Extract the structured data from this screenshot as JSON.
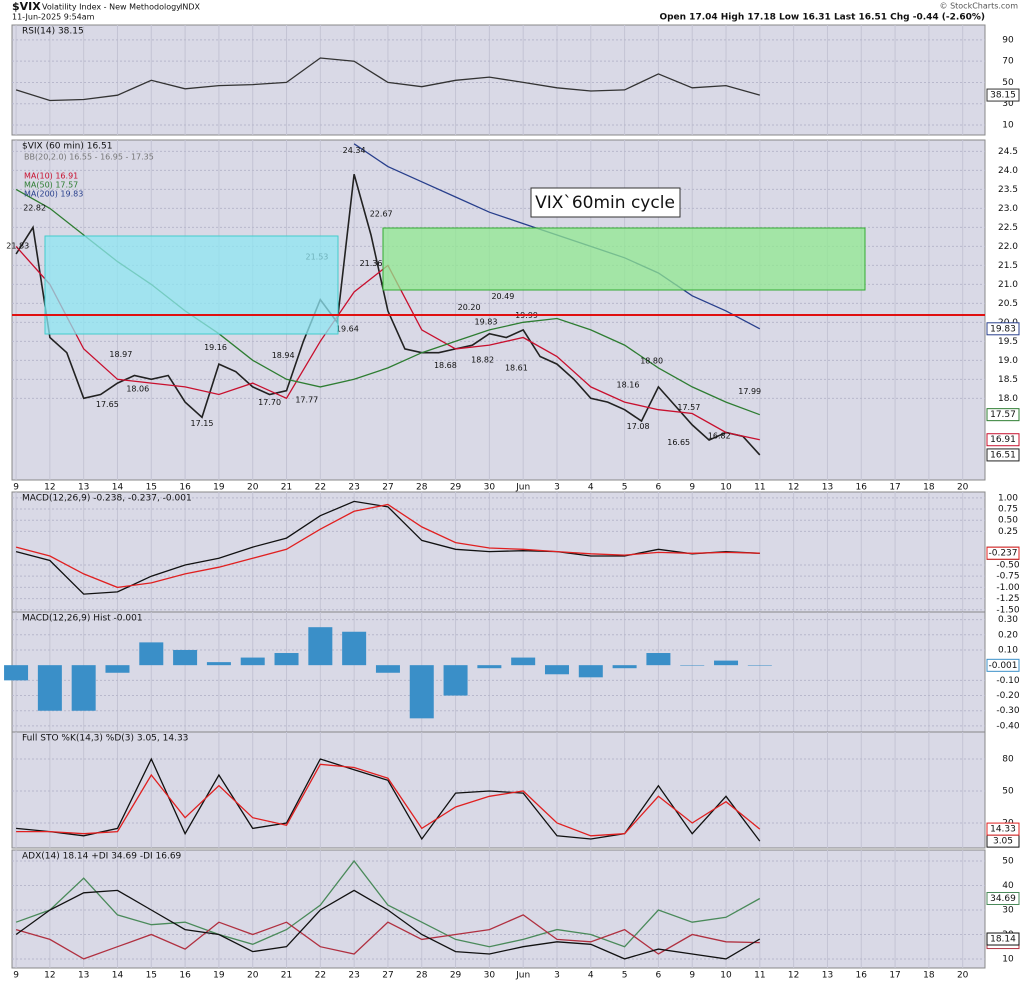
{
  "header": {
    "symbol": "$VIX",
    "name": "Volatility Index - New Methodology",
    "exchange": "INDX",
    "date": "11-Jun-2025 9:54am",
    "quote": "Open 17.04 High 17.18 Low 16.31 Last 16.51 Chg -0.44 (-2.60%)",
    "credit": "© StockCharts.com"
  },
  "chart_data": [
    {
      "type": "line",
      "title": "RSI(14) 38.15",
      "xlim": [
        -0.12,
        28.66
      ],
      "ylim": [
        0.6,
        104
      ],
      "yticks": [
        90,
        70,
        50,
        30,
        10
      ],
      "x": [
        0,
        1,
        2,
        3,
        4,
        5,
        6,
        7,
        8,
        9,
        10,
        11,
        12,
        13,
        14,
        15,
        16,
        17,
        18,
        19,
        20,
        21,
        22
      ],
      "series": [
        {
          "color": "#333333",
          "values": [
            43,
            33,
            34,
            38,
            52,
            44,
            47,
            48,
            50,
            73,
            70,
            50,
            46,
            52,
            55,
            50,
            45,
            42,
            43,
            58,
            45,
            47,
            38.15
          ]
        }
      ]
    },
    {
      "type": "line",
      "title": "$VIX (60 min) 16.51",
      "bb_label": "BB(20,2.0) 16.55 - 16.95 - 17.35",
      "note": "VIX`60min cycle",
      "categories": [
        "9",
        "12",
        "13",
        "14",
        "15",
        "16",
        "19",
        "20",
        "21",
        "22",
        "23",
        "27",
        "28",
        "29",
        "30",
        "Jun",
        "3",
        "4",
        "5",
        "6",
        "9",
        "10",
        "11",
        "12",
        "13",
        "16",
        "17",
        "18",
        "20"
      ],
      "xlim": [
        -0.12,
        28.66
      ],
      "ylim": [
        15.85,
        24.8
      ],
      "yticks": [
        24.5,
        {
          "value": 24,
          "label": "24.0"
        },
        23.5,
        {
          "value": 23,
          "label": "23.0"
        },
        22.5,
        {
          "value": 22,
          "label": "22.0"
        },
        21.5,
        {
          "value": 21,
          "label": "21.0"
        },
        20.5,
        {
          "value": 20,
          "label": "20.0"
        },
        19.5,
        {
          "value": 19,
          "label": "19.0"
        },
        18.5,
        {
          "value": 18,
          "label": "18.0"
        }
      ],
      "x": [
        0,
        1,
        2,
        3,
        4,
        5,
        6,
        7,
        8,
        9,
        10,
        11,
        12,
        13,
        14,
        15,
        16,
        17,
        18,
        19,
        20,
        21,
        22
      ],
      "series": [
        {
          "color": "#222222",
          "x": [
            0,
            0.5,
            1,
            1.5,
            2,
            2.5,
            3,
            3.5,
            4,
            4.5,
            5,
            5.5,
            6,
            6.5,
            7,
            7.5,
            8,
            8.5,
            9,
            9.5,
            10,
            10.5,
            11,
            11.5,
            12,
            12.5,
            13,
            13.5,
            14,
            14.5,
            15,
            15.5,
            16,
            16.5,
            17,
            17.5,
            18,
            18.5,
            19,
            19.5,
            20,
            20.5,
            21,
            21.5,
            22
          ],
          "values": [
            21.8,
            22.5,
            19.6,
            19.2,
            18.0,
            18.1,
            18.4,
            18.6,
            18.5,
            18.6,
            17.9,
            17.5,
            18.9,
            18.7,
            18.3,
            18.1,
            18.2,
            19.5,
            20.6,
            20.0,
            23.9,
            22.3,
            20.3,
            19.3,
            19.2,
            19.2,
            19.3,
            19.4,
            19.7,
            19.6,
            19.8,
            19.1,
            18.9,
            18.5,
            18.0,
            17.9,
            17.7,
            17.4,
            18.3,
            17.8,
            17.3,
            16.9,
            17.1,
            17.0,
            16.51
          ]
        },
        {
          "name": "MA(10) 16.91",
          "color": "#c8102e",
          "values": [
            22.0,
            21.0,
            19.3,
            18.5,
            18.4,
            18.3,
            18.1,
            18.4,
            18.0,
            19.5,
            20.8,
            21.5,
            19.8,
            19.3,
            19.4,
            19.6,
            19.1,
            18.3,
            17.9,
            17.7,
            17.6,
            17.1,
            16.91
          ]
        },
        {
          "name": "MA(50) 17.57",
          "color": "#2e7d32",
          "values": [
            23.5,
            23.0,
            22.3,
            21.6,
            21.0,
            20.3,
            19.7,
            19.0,
            18.5,
            18.3,
            18.5,
            18.8,
            19.2,
            19.5,
            19.8,
            20.0,
            20.1,
            19.8,
            19.4,
            18.8,
            18.3,
            17.9,
            17.57
          ]
        },
        {
          "name": "MA(200) 19.83",
          "color": "#283f8c",
          "values": [
            null,
            null,
            null,
            null,
            null,
            null,
            null,
            null,
            null,
            null,
            24.7,
            24.1,
            23.7,
            23.3,
            22.9,
            22.6,
            22.3,
            22.0,
            21.7,
            21.3,
            20.7,
            20.3,
            19.83
          ]
        }
      ],
      "annotations": [
        {
          "x": 0.55,
          "value": 22.82,
          "label": "22.82"
        },
        {
          "x": 0.05,
          "value": 21.83,
          "label": "21.83"
        },
        {
          "x": 3.1,
          "value": 18.97,
          "label": "18.97"
        },
        {
          "x": 3.6,
          "value": 18.06,
          "label": "18.06"
        },
        {
          "x": 2.7,
          "value": 17.65,
          "label": "17.65"
        },
        {
          "x": 5.9,
          "value": 19.16,
          "label": "19.16"
        },
        {
          "x": 5.5,
          "value": 17.15,
          "label": "17.15"
        },
        {
          "x": 7.9,
          "value": 18.94,
          "label": "18.94"
        },
        {
          "x": 7.5,
          "value": 17.7,
          "label": "17.70"
        },
        {
          "x": 8.6,
          "value": 17.77,
          "label": "17.77"
        },
        {
          "x": 8.9,
          "value": 21.53,
          "label": "21.53"
        },
        {
          "x": 9.8,
          "value": 19.64,
          "label": "19.64"
        },
        {
          "x": 10.0,
          "value": 24.34,
          "label": "24.34"
        },
        {
          "x": 10.8,
          "value": 22.67,
          "label": "22.67"
        },
        {
          "x": 10.5,
          "value": 21.36,
          "label": "21.36"
        },
        {
          "x": 13.4,
          "value": 20.2,
          "label": "20.20"
        },
        {
          "x": 13.9,
          "value": 19.83,
          "label": "19.83"
        },
        {
          "x": 14.4,
          "value": 20.49,
          "label": "20.49"
        },
        {
          "x": 15.1,
          "value": 19.99,
          "label": "19.99"
        },
        {
          "x": 12.7,
          "value": 18.68,
          "label": "18.68"
        },
        {
          "x": 13.8,
          "value": 18.82,
          "label": "18.82"
        },
        {
          "x": 14.8,
          "value": 18.61,
          "label": "18.61"
        },
        {
          "x": 18.1,
          "value": 18.16,
          "label": "18.16"
        },
        {
          "x": 18.8,
          "value": 18.8,
          "label": "18.80"
        },
        {
          "x": 18.4,
          "value": 17.08,
          "label": "17.08"
        },
        {
          "x": 19.9,
          "value": 17.57,
          "label": "17.57"
        },
        {
          "x": 19.6,
          "value": 16.65,
          "label": "16.65"
        },
        {
          "x": 20.8,
          "value": 16.82,
          "label": "16.82"
        },
        {
          "x": 21.7,
          "value": 17.99,
          "label": "17.99"
        }
      ]
    },
    {
      "type": "line",
      "title": "MACD(12,26,9) -0.238, -0.237, -0.001",
      "xlim": [
        -0.12,
        28.66
      ],
      "ylim": [
        -1.55,
        1.13
      ],
      "yticks": [
        {
          "value": 1,
          "label": "1.00"
        },
        0.75,
        {
          "value": 0.5,
          "label": "0.50"
        },
        0.25,
        {
          "value": -0.5,
          "label": "-0.50"
        },
        -0.75,
        {
          "value": -1,
          "label": "-1.00"
        },
        -1.25,
        {
          "value": -1.5,
          "label": "-1.50"
        }
      ],
      "x": [
        0,
        1,
        2,
        3,
        4,
        5,
        6,
        7,
        8,
        9,
        10,
        11,
        12,
        13,
        14,
        15,
        16,
        17,
        18,
        19,
        20,
        21,
        22
      ],
      "series": [
        {
          "color": "#111111",
          "values": [
            -0.2,
            -0.4,
            -1.15,
            -1.1,
            -0.75,
            -0.5,
            -0.35,
            -0.1,
            0.1,
            0.6,
            0.92,
            0.8,
            0.05,
            -0.15,
            -0.2,
            -0.18,
            -0.2,
            -0.3,
            -0.3,
            -0.15,
            -0.25,
            -0.2,
            -0.238
          ]
        },
        {
          "color": "#e02020",
          "values": [
            -0.1,
            -0.3,
            -0.7,
            -1.0,
            -0.9,
            -0.7,
            -0.55,
            -0.35,
            -0.15,
            0.3,
            0.7,
            0.85,
            0.35,
            0.0,
            -0.12,
            -0.15,
            -0.2,
            -0.25,
            -0.28,
            -0.22,
            -0.24,
            -0.22,
            -0.237
          ]
        }
      ]
    },
    {
      "type": "bar",
      "title": "MACD(12,26,9) Hist -0.001",
      "xlim": [
        -0.12,
        28.66
      ],
      "ylim": [
        -0.44,
        0.35
      ],
      "yticks": [
        {
          "value": 0.3,
          "label": "0.30"
        },
        {
          "value": 0.2,
          "label": "0.20"
        },
        {
          "value": 0.1,
          "label": "0.10"
        },
        {
          "value": -0.1,
          "label": "-0.10"
        },
        {
          "value": -0.2,
          "label": "-0.20"
        },
        {
          "value": -0.3,
          "label": "-0.30"
        },
        {
          "value": -0.4,
          "label": "-0.40"
        }
      ],
      "x": [
        0,
        1,
        2,
        3,
        4,
        5,
        6,
        7,
        8,
        9,
        10,
        11,
        12,
        13,
        14,
        15,
        16,
        17,
        18,
        19,
        20,
        21,
        22
      ],
      "series": [
        {
          "color": "#3a8fc8",
          "values": [
            -0.1,
            -0.3,
            -0.3,
            -0.05,
            0.15,
            0.1,
            0.02,
            0.05,
            0.08,
            0.25,
            0.22,
            -0.05,
            -0.35,
            -0.2,
            -0.02,
            0.05,
            -0.06,
            -0.08,
            -0.02,
            0.08,
            0.0,
            0.03,
            -0.001
          ]
        }
      ]
    },
    {
      "type": "line",
      "title": "Full STO %K(14,3) %D(3) 3.05, 14.33",
      "xlim": [
        -0.12,
        28.66
      ],
      "ylim": [
        -3.4,
        105.3
      ],
      "yticks": [
        80,
        50,
        20
      ],
      "x": [
        0,
        1,
        2,
        3,
        4,
        5,
        6,
        7,
        8,
        9,
        10,
        11,
        12,
        13,
        14,
        15,
        16,
        17,
        18,
        19,
        20,
        21,
        22
      ],
      "series": [
        {
          "color": "#111111",
          "values": [
            15,
            12,
            8,
            15,
            80,
            10,
            65,
            15,
            20,
            80,
            70,
            60,
            5,
            48,
            50,
            48,
            8,
            5,
            10,
            55,
            10,
            45,
            3.05
          ]
        },
        {
          "color": "#e02020",
          "values": [
            12,
            12,
            10,
            12,
            65,
            25,
            55,
            25,
            18,
            75,
            72,
            62,
            15,
            35,
            45,
            50,
            20,
            8,
            10,
            45,
            20,
            40,
            14.33
          ]
        }
      ]
    },
    {
      "type": "line",
      "title": "ADX(14) 18.14 +DI 34.69 -DI 16.69",
      "categories": [
        "9",
        "12",
        "13",
        "14",
        "15",
        "16",
        "19",
        "20",
        "21",
        "22",
        "23",
        "27",
        "28",
        "29",
        "30",
        "Jun",
        "3",
        "4",
        "5",
        "6",
        "9",
        "10",
        "11",
        "12",
        "13",
        "16",
        "17",
        "18",
        "20"
      ],
      "xlim": [
        -0.12,
        28.66
      ],
      "ylim": [
        6.3,
        54.5
      ],
      "yticks": [
        50,
        40,
        30,
        20,
        10
      ],
      "x": [
        0,
        1,
        2,
        3,
        4,
        5,
        6,
        7,
        8,
        9,
        10,
        11,
        12,
        13,
        14,
        15,
        16,
        17,
        18,
        19,
        20,
        21,
        22
      ],
      "series": [
        {
          "color": "#4a8a5a",
          "values": [
            25,
            30,
            43,
            28,
            24,
            25,
            20,
            16,
            22,
            32,
            50,
            32,
            25,
            18,
            15,
            18,
            22,
            20,
            15,
            30,
            25,
            27,
            34.69
          ]
        },
        {
          "color": "#b03040",
          "values": [
            22,
            18,
            10,
            15,
            20,
            14,
            25,
            20,
            25,
            15,
            12,
            25,
            18,
            20,
            22,
            28,
            18,
            17,
            22,
            12,
            20,
            17,
            16.69
          ]
        },
        {
          "color": "#111111",
          "values": [
            20,
            30,
            37,
            38,
            30,
            22,
            20,
            13,
            15,
            30,
            38,
            30,
            20,
            13,
            12,
            15,
            17,
            16,
            10,
            14,
            12,
            10,
            18.14
          ]
        }
      ]
    }
  ]
}
